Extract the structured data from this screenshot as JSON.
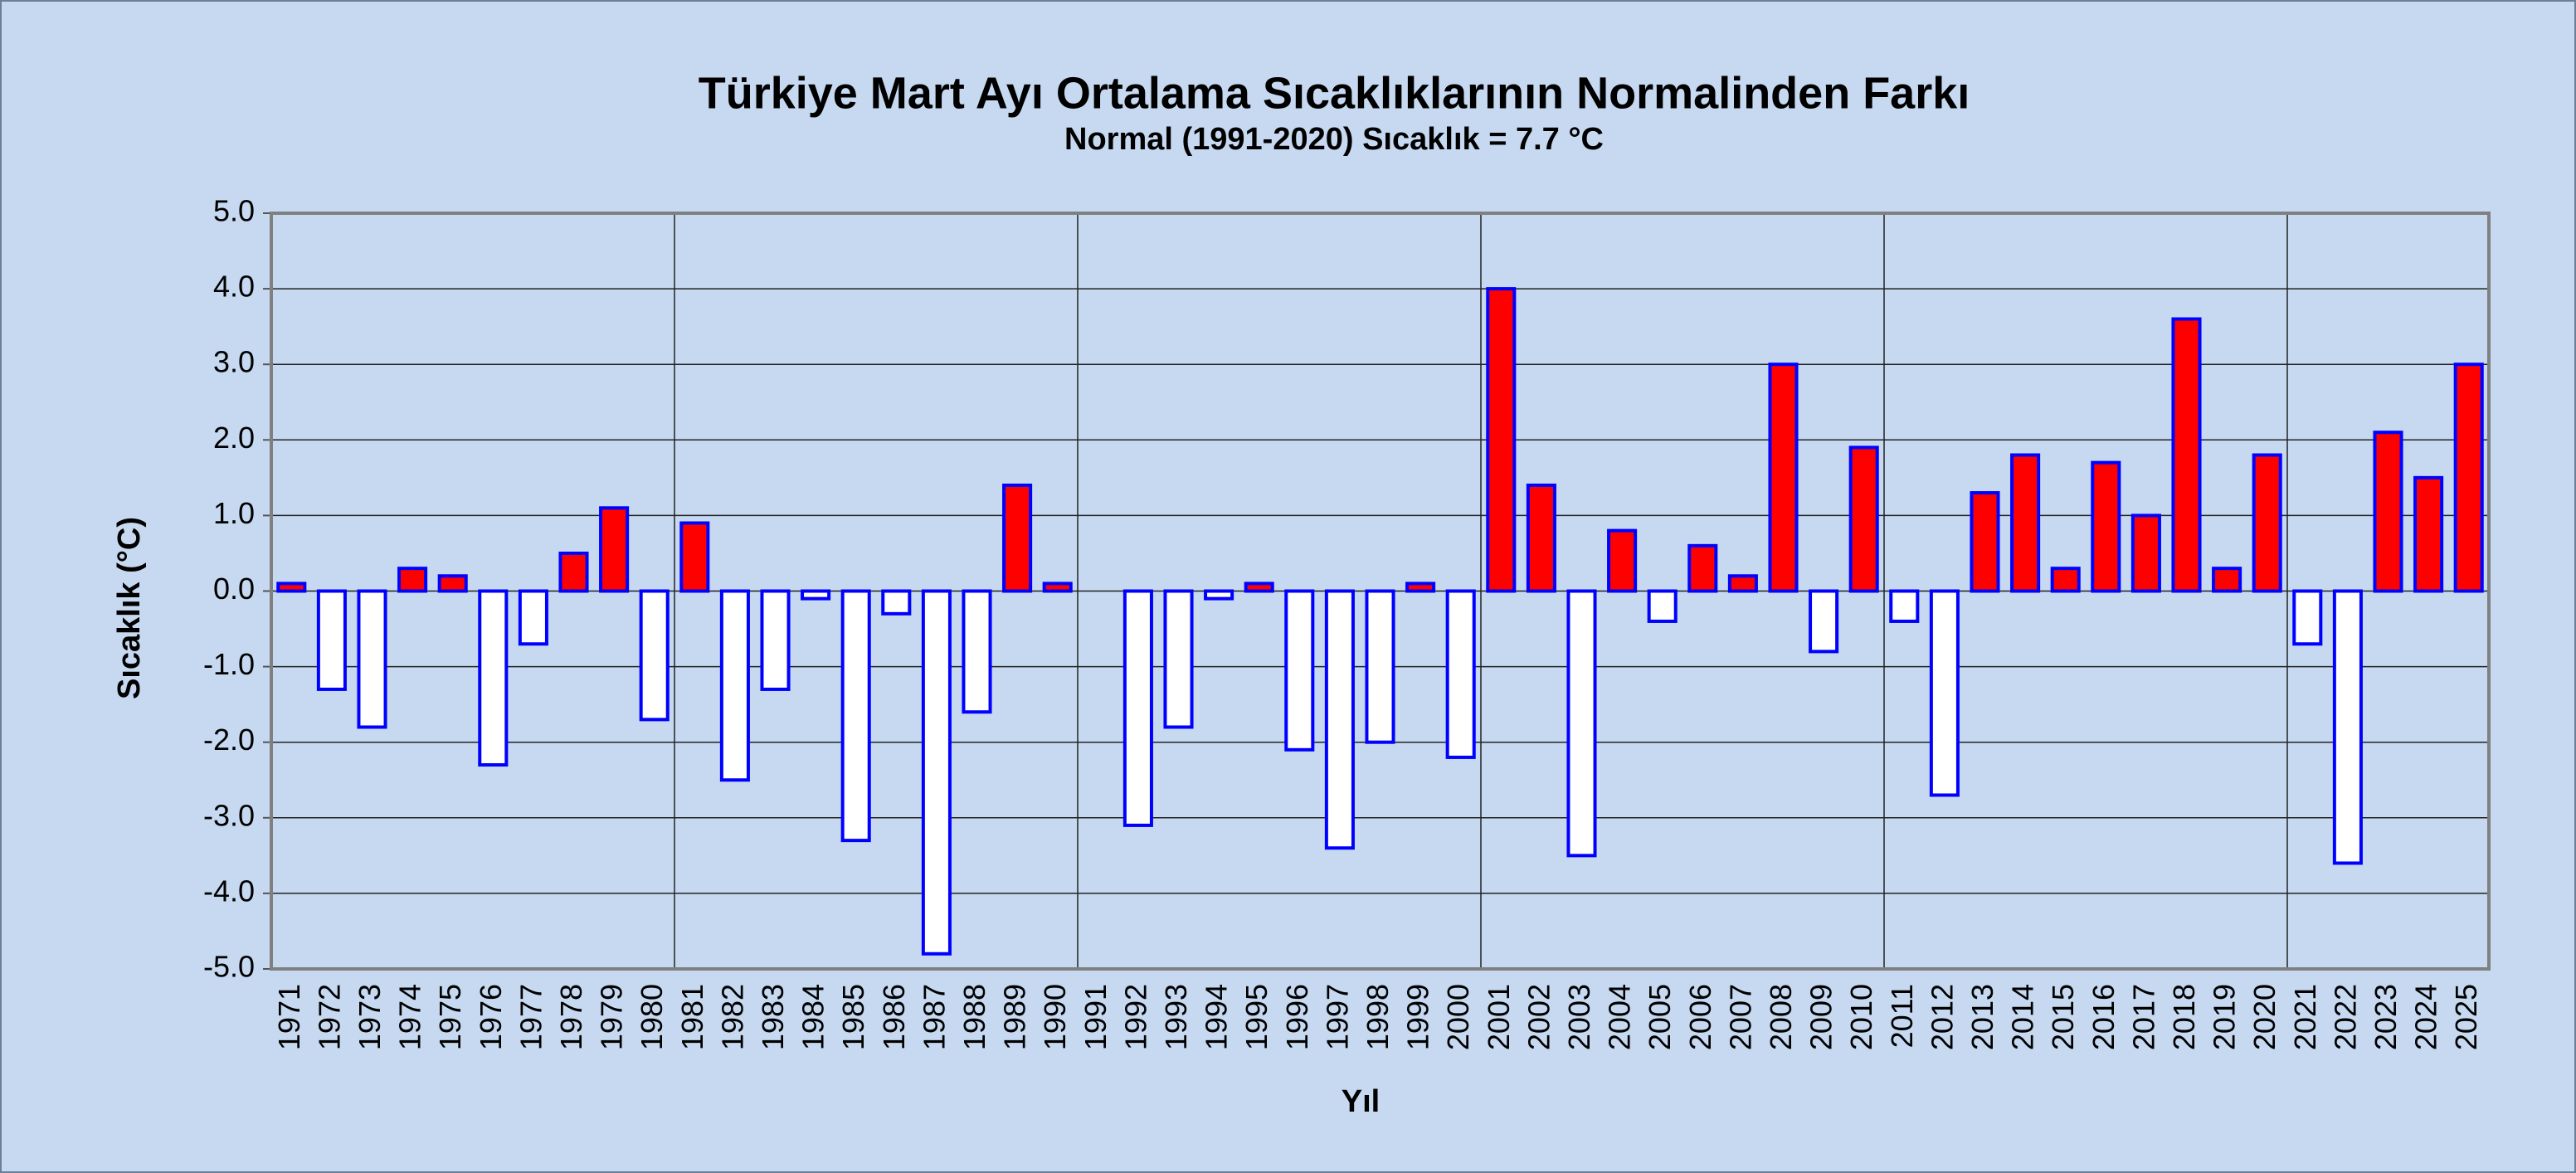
{
  "chart_data": {
    "type": "bar",
    "title": "Türkiye Mart Ayı Ortalama Sıcaklıklarının Normalinden Farkı",
    "subtitle": "Normal (1991-2020) Sıcaklık = 7.7 °C",
    "y_label": "Sıcaklık (°C)",
    "x_label": "Yıl",
    "categories": [
      "1971",
      "1972",
      "1973",
      "1974",
      "1975",
      "1976",
      "1977",
      "1978",
      "1979",
      "1980",
      "1981",
      "1982",
      "1983",
      "1984",
      "1985",
      "1986",
      "1987",
      "1988",
      "1989",
      "1990",
      "1991",
      "1992",
      "1993",
      "1994",
      "1995",
      "1996",
      "1997",
      "1998",
      "1999",
      "2000",
      "2001",
      "2002",
      "2003",
      "2004",
      "2005",
      "2006",
      "2007",
      "2008",
      "2009",
      "2010",
      "2011",
      "2012",
      "2013",
      "2014",
      "2015",
      "2016",
      "2017",
      "2018",
      "2019",
      "2020",
      "2021",
      "2022",
      "2023",
      "2024",
      "2025"
    ],
    "values": [
      0.1,
      -1.3,
      -1.8,
      0.3,
      0.2,
      -2.3,
      -0.7,
      0.5,
      1.1,
      -1.7,
      0.9,
      -2.5,
      -1.3,
      -0.1,
      -3.3,
      -0.3,
      -4.8,
      -1.6,
      1.4,
      0.1,
      0.0,
      -3.1,
      -1.8,
      -0.1,
      0.1,
      -2.1,
      -3.4,
      -2.0,
      0.1,
      -2.2,
      4.0,
      1.4,
      -3.5,
      0.8,
      -0.4,
      0.6,
      0.2,
      3.0,
      -0.8,
      1.9,
      -0.4,
      -2.7,
      1.3,
      1.8,
      0.3,
      1.7,
      1.0,
      3.6,
      0.3,
      1.8,
      -0.7,
      -3.6,
      2.1,
      1.5,
      3.0
    ],
    "positive_color": "#ff0000",
    "negative_color": "#ffffff",
    "border_color": "#0000ff",
    "ylim": [
      -5,
      5
    ],
    "yticks": [
      {
        "value": 5,
        "label": "5.0"
      },
      {
        "value": 4,
        "label": "4.0"
      },
      {
        "value": 3,
        "label": "3.0"
      },
      {
        "value": 2,
        "label": "2.0"
      },
      {
        "value": 1,
        "label": "1.0"
      },
      {
        "value": 0,
        "label": "0.0"
      },
      {
        "value": -1,
        "label": "-1.0"
      },
      {
        "value": -2,
        "label": "-2.0"
      },
      {
        "value": -3,
        "label": "-3.0"
      },
      {
        "value": -4,
        "label": "-4.0"
      },
      {
        "value": -5,
        "label": "-5.0"
      }
    ],
    "grid": true
  }
}
